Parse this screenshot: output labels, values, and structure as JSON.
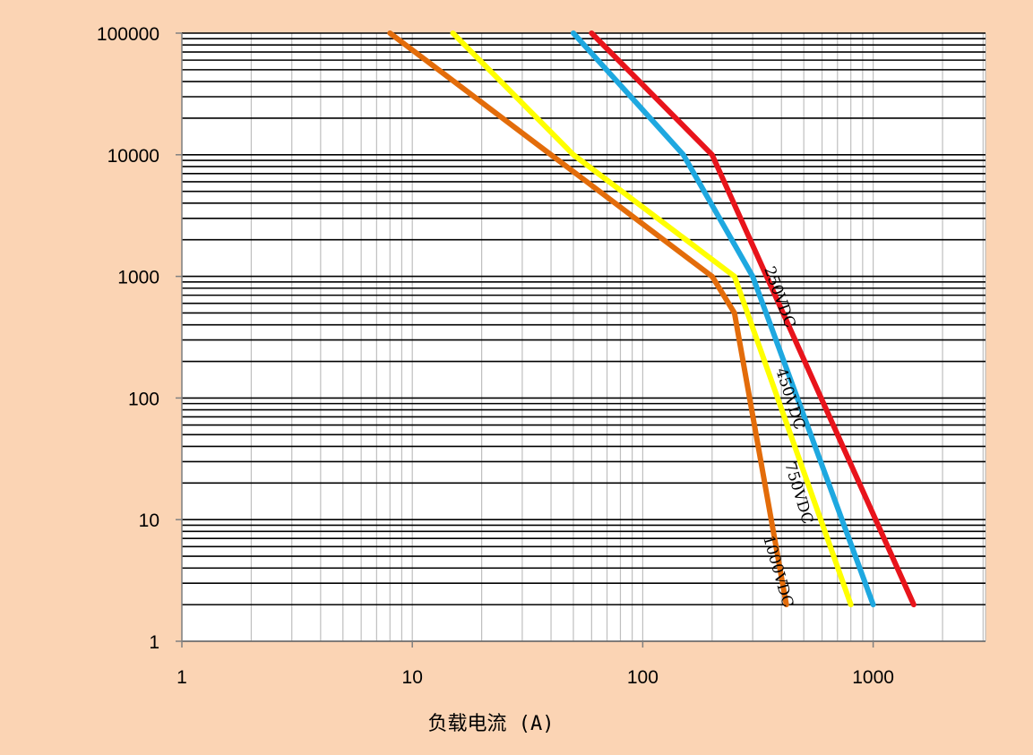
{
  "colors": {
    "background": "#FBD4B4",
    "plot_area": "#FFFFFF",
    "major_grid": "#000000",
    "minor_grid": "#BFBFBF"
  },
  "chart_data": {
    "type": "line",
    "xscale": "log",
    "yscale": "log",
    "xlim": [
      1,
      3000
    ],
    "ylim": [
      1,
      100000
    ],
    "title": "",
    "xlabel": "负载电流 (A)",
    "ylabel": "",
    "x_tick_labels": [
      "1",
      "10",
      "100",
      "1000"
    ],
    "y_tick_labels": [
      "1",
      "10",
      "100",
      "1000",
      "10000",
      "100000"
    ],
    "grid": true,
    "legend": "none",
    "series": [
      {
        "name": "250VDC",
        "color": "#E8141B",
        "x": [
          60,
          200,
          1500
        ],
        "y": [
          100000,
          10000,
          2
        ]
      },
      {
        "name": "450VDC",
        "color": "#1EA8E0",
        "x": [
          50,
          150,
          300,
          1000
        ],
        "y": [
          100000,
          10000,
          1000,
          2
        ]
      },
      {
        "name": "750VDC",
        "color": "#FFFF00",
        "x": [
          15,
          50,
          250,
          800
        ],
        "y": [
          100000,
          10000,
          1000,
          2
        ]
      },
      {
        "name": "1000VDC",
        "color": "#E36C0A",
        "x": [
          8,
          40,
          200,
          250,
          420
        ],
        "y": [
          100000,
          10000,
          1000,
          500,
          2
        ]
      }
    ]
  }
}
